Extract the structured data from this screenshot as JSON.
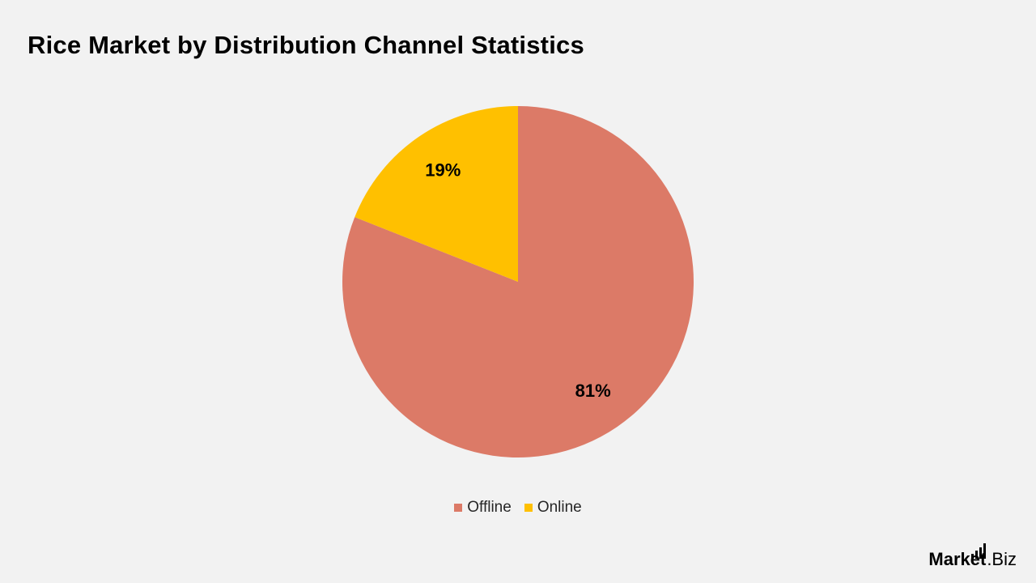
{
  "title": "Rice Market by Distribution Channel Statistics",
  "chart_data": {
    "type": "pie",
    "title": "Rice Market by Distribution Channel Statistics",
    "slices": [
      {
        "name": "Offline",
        "value": 81,
        "label": "81%",
        "color": "#dc7a67"
      },
      {
        "name": "Online",
        "value": 19,
        "label": "19%",
        "color": "#ffc000"
      }
    ],
    "legend_position": "bottom"
  },
  "legend": {
    "items": [
      {
        "label": "Offline",
        "color": "#dc7a67"
      },
      {
        "label": "Online",
        "color": "#ffc000"
      }
    ]
  },
  "logo": {
    "part1": "Market",
    "part2": ".Biz"
  }
}
